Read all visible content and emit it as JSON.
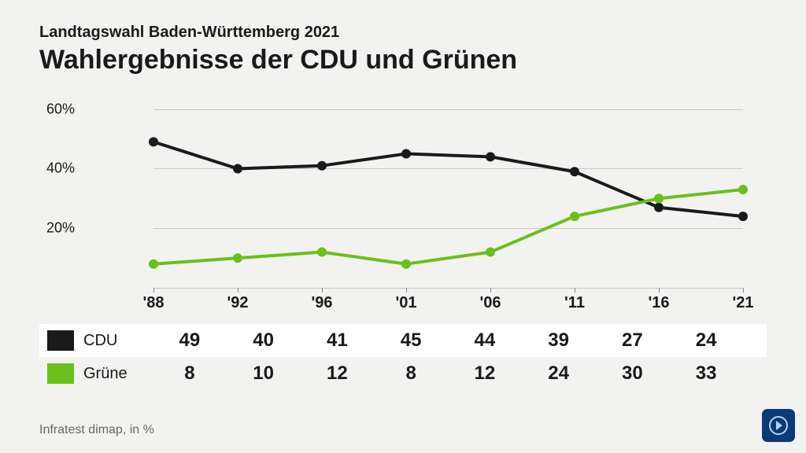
{
  "pretitle": "Landtagswahl Baden-Württemberg 2021",
  "title": "Wahlergebnisse der CDU und Grünen",
  "source": "Infratest dimap, in %",
  "chart": {
    "type": "line",
    "background_color": "#f2f2f0",
    "grid_color": "#c8c8c6",
    "ylim": [
      0,
      66
    ],
    "yticks": [
      20,
      40,
      60
    ],
    "ytick_labels": [
      "20%",
      "40%",
      "60%"
    ],
    "categories": [
      "'88",
      "'92",
      "'96",
      "'01",
      "'06",
      "'11",
      "'16",
      "'21"
    ],
    "line_width": 4,
    "marker_radius": 6,
    "marker_style": "circle",
    "font_family": "Arial",
    "axis_fontsize": 18,
    "xlabel_fontsize": 20,
    "series": [
      {
        "name": "CDU",
        "color": "#1a1a1a",
        "values": [
          49,
          40,
          41,
          45,
          44,
          39,
          27,
          24
        ]
      },
      {
        "name": "Grüne",
        "color": "#6bbf1a",
        "values": [
          8,
          10,
          12,
          8,
          12,
          24,
          30,
          33
        ]
      }
    ]
  },
  "logo": {
    "bg_color": "#0a3a7a",
    "fg_color": "#b8d4f0"
  }
}
